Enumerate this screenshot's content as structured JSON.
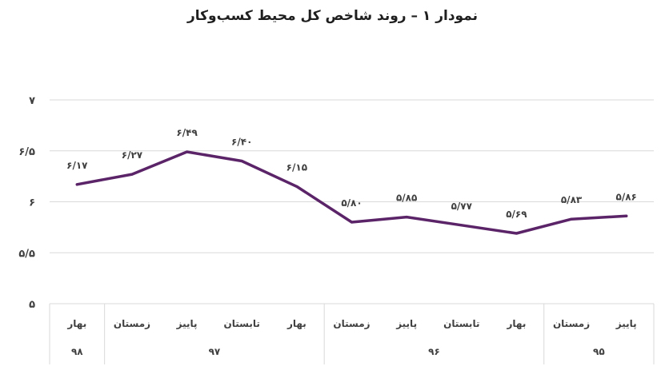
{
  "chart_data": {
    "type": "line",
    "title": "نمودار ۱ – روند شاخص کل محیط کسب‌وکار",
    "categories": [
      "پاییز",
      "زمستان",
      "بهار",
      "تابستان",
      "پاییز",
      "زمستان",
      "بهار",
      "تابستان",
      "پاییز",
      "زمستان",
      "بهار"
    ],
    "groups": [
      {
        "label": "۹۵",
        "count": 2
      },
      {
        "label": "۹۶",
        "count": 4
      },
      {
        "label": "۹۷",
        "count": 4
      },
      {
        "label": "۹۸",
        "count": 1
      }
    ],
    "values": [
      5.86,
      5.83,
      5.69,
      5.77,
      5.85,
      5.8,
      6.15,
      6.4,
      6.49,
      6.27,
      6.17
    ],
    "data_labels": [
      "۵/۸۶",
      "۵/۸۳",
      "۵/۶۹",
      "۵/۷۷",
      "۵/۸۵",
      "۵/۸۰",
      "۶/۱۵",
      "۶/۴۰",
      "۶/۴۹",
      "۶/۲۷",
      "۶/۱۷"
    ],
    "y_ticks": [
      5,
      5.5,
      6,
      6.5,
      7
    ],
    "y_tick_labels": [
      "۵",
      "۵/۵",
      "۶",
      "۶/۵",
      "۷"
    ],
    "ylim": [
      5,
      7
    ],
    "grid": true,
    "line_color": "#5b2468",
    "grid_color": "#d9d9d9"
  }
}
